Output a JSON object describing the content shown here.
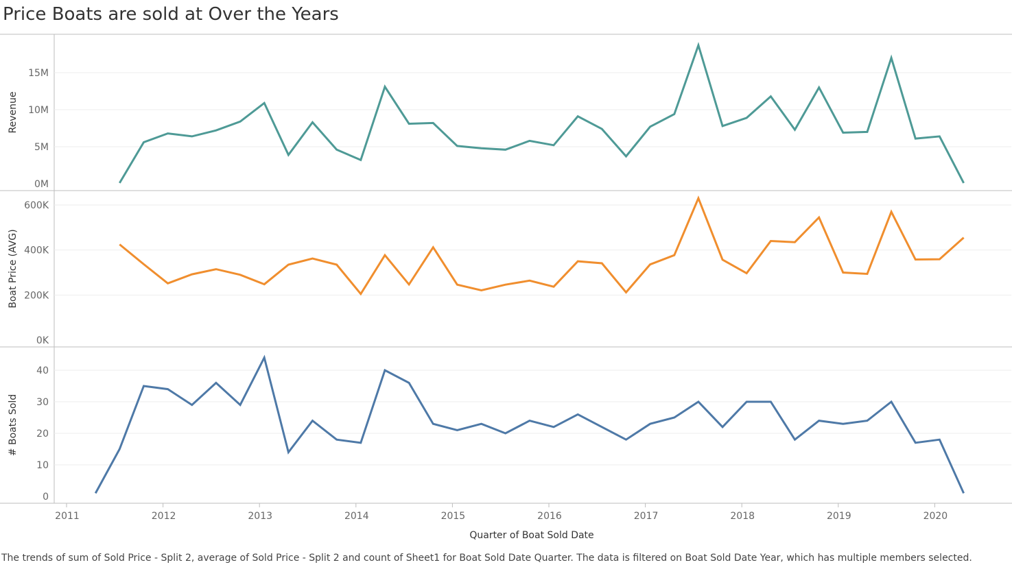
{
  "title": "Price Boats are sold at Over the Years",
  "caption": "The trends of sum of Sold Price - Split 2, average of Sold Price - Split 2 and count of Sheet1 for Boat Sold Date Quarter. The data is filtered on Boat Sold Date Year, which has multiple members selected.",
  "colors": {
    "revenue": "#4e9a96",
    "price": "#f08e2e",
    "count": "#4e79a7",
    "axis": "#7f7f7f",
    "grid": "#eeeeee",
    "border": "#bdbdbd"
  },
  "chart_data": {
    "type": "line",
    "xlabel": "Quarter of Boat Sold Date",
    "x_ticks": [
      "2011",
      "2012",
      "2013",
      "2014",
      "2015",
      "2016",
      "2017",
      "2018",
      "2019",
      "2020"
    ],
    "x_quarters": [
      "2011 Q2",
      "2011 Q3",
      "2011 Q4",
      "2012 Q1",
      "2012 Q2",
      "2012 Q3",
      "2012 Q4",
      "2013 Q1",
      "2013 Q2",
      "2013 Q3",
      "2013 Q4",
      "2014 Q1",
      "2014 Q2",
      "2014 Q3",
      "2014 Q4",
      "2015 Q1",
      "2015 Q2",
      "2015 Q3",
      "2015 Q4",
      "2016 Q1",
      "2016 Q2",
      "2016 Q3",
      "2016 Q4",
      "2017 Q1",
      "2017 Q2",
      "2017 Q3",
      "2017 Q4",
      "2018 Q1",
      "2018 Q2",
      "2018 Q3",
      "2018 Q4",
      "2019 Q1",
      "2019 Q2",
      "2019 Q3",
      "2019 Q4",
      "2020 Q1",
      "2020 Q2"
    ],
    "panels": [
      {
        "ylabel": "Revenue",
        "ylim": [
          0,
          19500000
        ],
        "yticks": [
          0,
          5000000,
          10000000,
          15000000
        ],
        "yticklabels": [
          "0M",
          "5M",
          "10M",
          "15M"
        ],
        "color_key": "revenue",
        "values": [
          null,
          0.1,
          5.6,
          6.8,
          6.4,
          7.2,
          8.4,
          10.9,
          3.9,
          8.3,
          4.6,
          3.2,
          13.1,
          8.1,
          8.2,
          5.1,
          4.8,
          4.6,
          5.8,
          5.2,
          9.1,
          7.4,
          3.7,
          7.7,
          9.4,
          18.7,
          7.8,
          8.9,
          11.8,
          7.3,
          13.0,
          6.9,
          7.0,
          17.0,
          6.1,
          6.4,
          0.1
        ],
        "value_scale": 1000000
      },
      {
        "ylabel": "Boat Price (AVG)",
        "ylim": [
          0,
          640000
        ],
        "yticks": [
          0,
          200000,
          400000,
          600000
        ],
        "yticklabels": [
          "0K",
          "200K",
          "400K",
          "600K"
        ],
        "color_key": "price",
        "values": [
          null,
          425,
          337,
          252,
          292,
          315,
          290,
          248,
          335,
          362,
          335,
          205,
          377,
          247,
          412,
          246,
          221,
          246,
          264,
          237,
          350,
          341,
          212,
          336,
          377,
          630,
          357,
          297,
          440,
          435,
          545,
          300,
          294,
          570,
          358,
          359,
          455
        ],
        "value_scale": 1000
      },
      {
        "ylabel": "# Boats Sold",
        "ylim": [
          0,
          45
        ],
        "yticks": [
          0,
          10,
          20,
          30,
          40
        ],
        "yticklabels": [
          "0",
          "10",
          "20",
          "30",
          "40"
        ],
        "color_key": "count",
        "values": [
          1,
          15,
          35,
          34,
          29,
          36,
          29,
          44,
          14,
          24,
          18,
          17,
          40,
          36,
          23,
          21,
          23,
          20,
          24,
          22,
          26,
          22,
          18,
          23,
          25,
          30,
          22,
          30,
          30,
          18,
          24,
          23,
          24,
          30,
          17,
          18,
          1
        ],
        "value_scale": 1
      }
    ]
  }
}
